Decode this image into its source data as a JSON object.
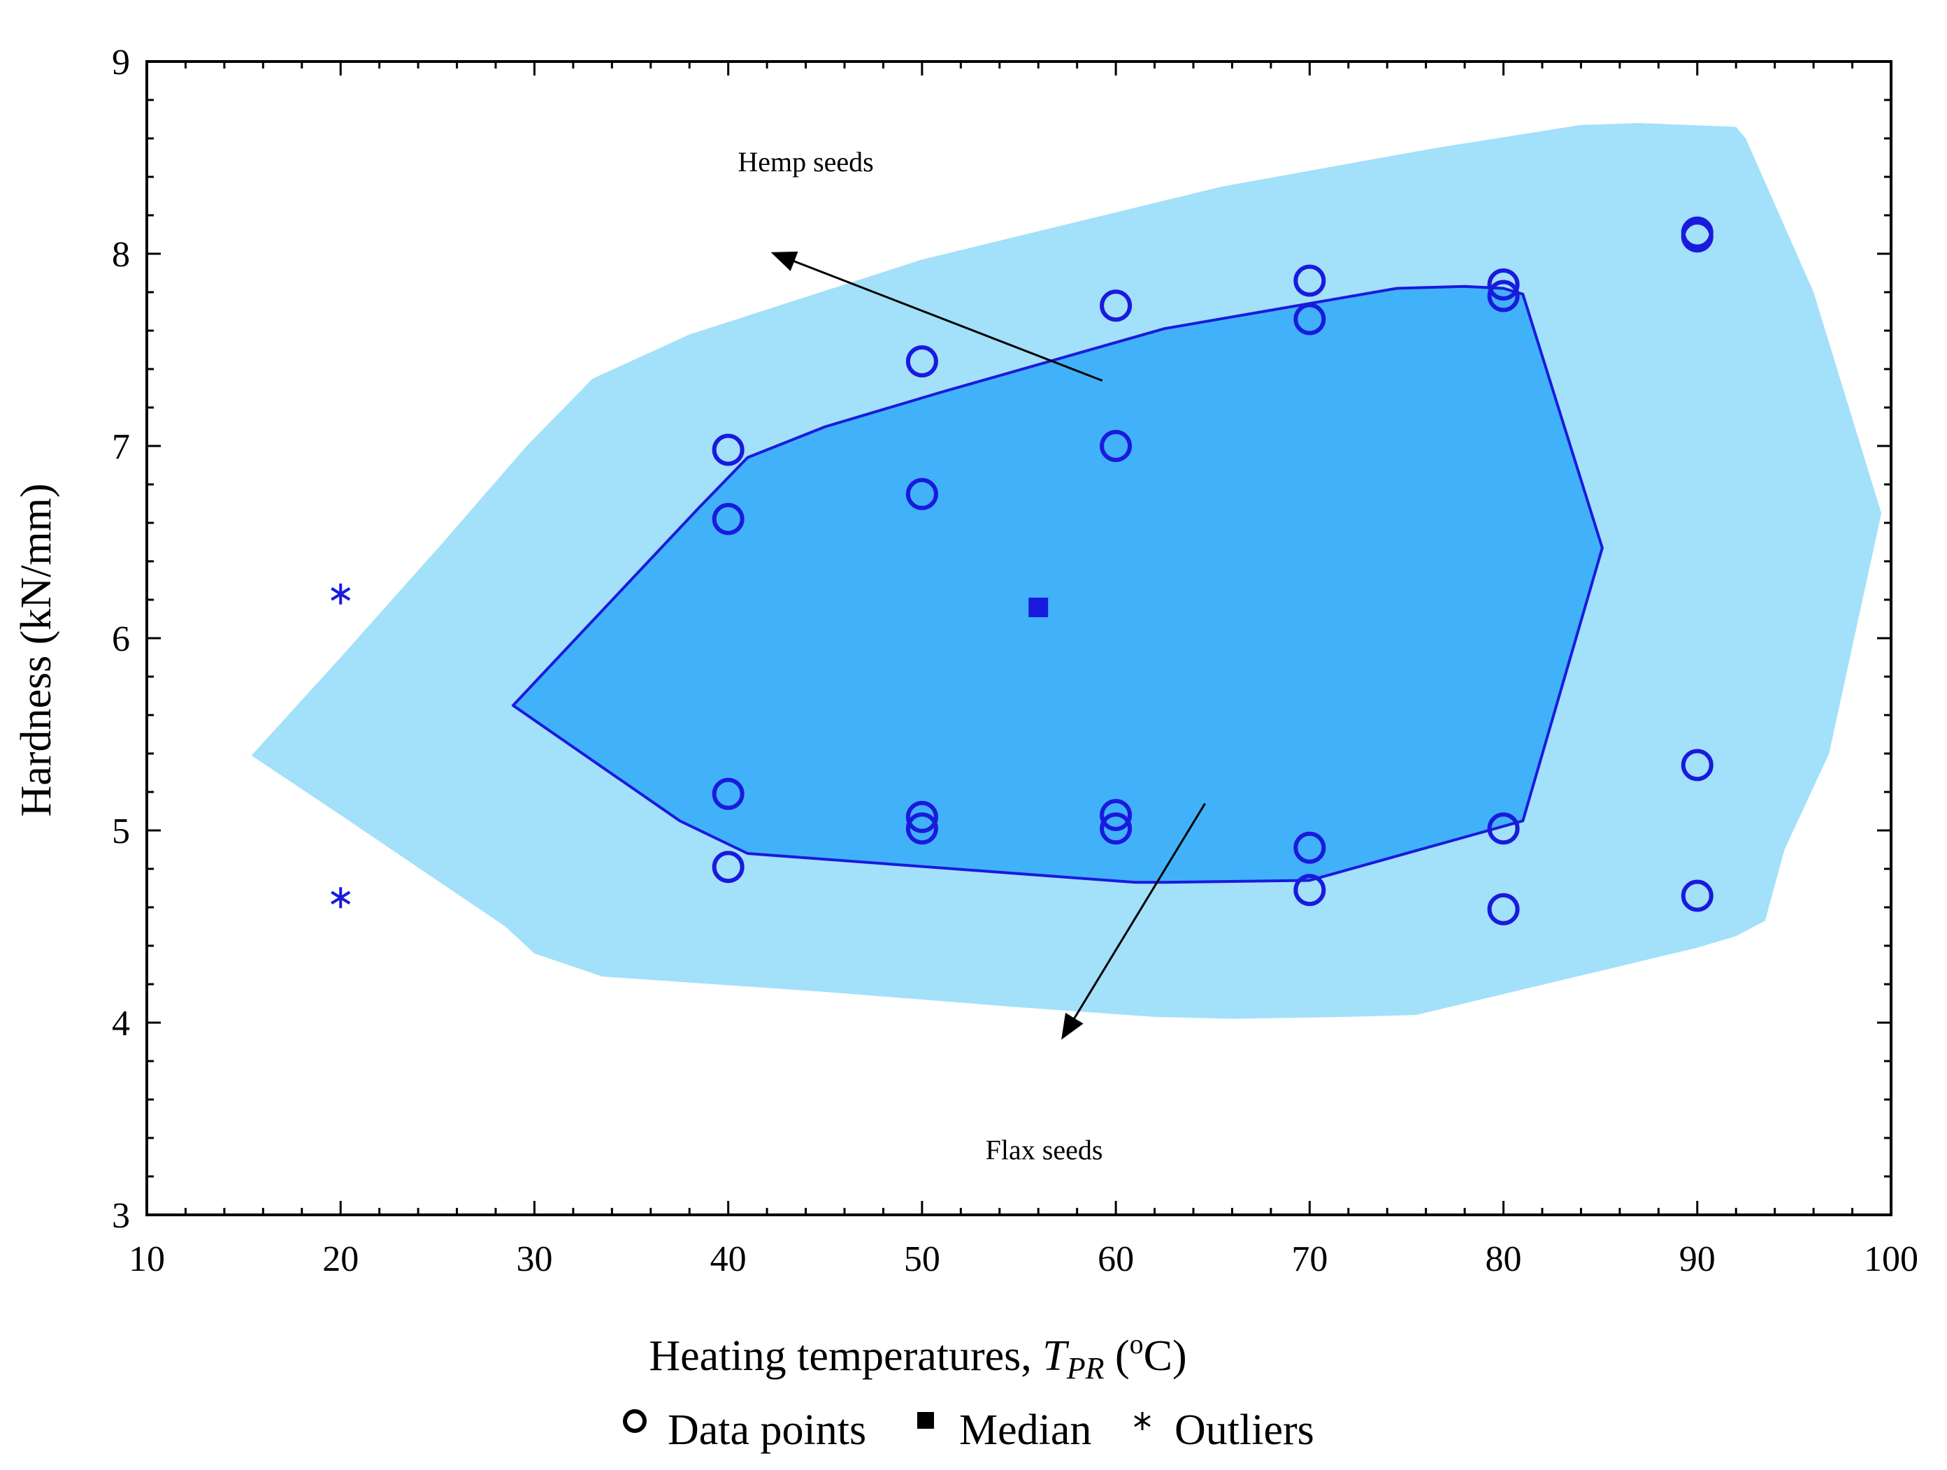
{
  "chart_data": {
    "type": "scatter",
    "title": "",
    "xlabel_prefix": "Heating temperatures, ",
    "xlabel_symbol": "T",
    "xlabel_subscript": "PR",
    "xlabel_unit_open": " (",
    "xlabel_unit_super": "o",
    "xlabel_unit_close": "C)",
    "ylabel": "Hardness (kN/mm)",
    "xlim": [
      10,
      100
    ],
    "ylim": [
      3,
      9
    ],
    "x_ticks": [
      10,
      20,
      30,
      40,
      50,
      60,
      70,
      80,
      90,
      100
    ],
    "y_ticks": [
      3,
      4,
      5,
      6,
      7,
      8,
      9
    ],
    "grid": false,
    "series": [
      {
        "name": "Data points",
        "marker": "circle",
        "points": [
          {
            "x": 40,
            "y": 6.98
          },
          {
            "x": 40,
            "y": 6.62
          },
          {
            "x": 40,
            "y": 5.19
          },
          {
            "x": 40,
            "y": 4.81
          },
          {
            "x": 50,
            "y": 7.44
          },
          {
            "x": 50,
            "y": 6.75
          },
          {
            "x": 50,
            "y": 5.07
          },
          {
            "x": 50,
            "y": 5.01
          },
          {
            "x": 60,
            "y": 7.73
          },
          {
            "x": 60,
            "y": 7.0
          },
          {
            "x": 60,
            "y": 5.08
          },
          {
            "x": 60,
            "y": 5.01
          },
          {
            "x": 70,
            "y": 7.86
          },
          {
            "x": 70,
            "y": 7.66
          },
          {
            "x": 70,
            "y": 4.91
          },
          {
            "x": 70,
            "y": 4.69
          },
          {
            "x": 80,
            "y": 7.84
          },
          {
            "x": 80,
            "y": 7.78
          },
          {
            "x": 80,
            "y": 5.01
          },
          {
            "x": 80,
            "y": 4.59
          },
          {
            "x": 90,
            "y": 8.11
          },
          {
            "x": 90,
            "y": 8.09
          },
          {
            "x": 90,
            "y": 5.34
          },
          {
            "x": 90,
            "y": 4.66
          }
        ]
      },
      {
        "name": "Median",
        "marker": "square",
        "points": [
          {
            "x": 56,
            "y": 6.16
          }
        ]
      },
      {
        "name": "Outliers",
        "marker": "asterisk",
        "points": [
          {
            "x": 20,
            "y": 6.23
          },
          {
            "x": 20,
            "y": 4.65
          }
        ]
      }
    ],
    "regions": [
      {
        "name": "Outer envelope",
        "color": "#A3E0FA",
        "polygon": [
          [
            15.4,
            5.39
          ],
          [
            20,
            5.9
          ],
          [
            25.3,
            6.5
          ],
          [
            29.6,
            7.0
          ],
          [
            33,
            7.35
          ],
          [
            38,
            7.58
          ],
          [
            50,
            7.97
          ],
          [
            65.5,
            8.35
          ],
          [
            76.5,
            8.55
          ],
          [
            84,
            8.67
          ],
          [
            87,
            8.68
          ],
          [
            92,
            8.66
          ],
          [
            92.5,
            8.6
          ],
          [
            96,
            7.8
          ],
          [
            99.5,
            6.65
          ],
          [
            96.8,
            5.4
          ],
          [
            94.5,
            4.9
          ],
          [
            93.5,
            4.53
          ],
          [
            92,
            4.45
          ],
          [
            90,
            4.39
          ],
          [
            75.5,
            4.04
          ],
          [
            72,
            4.03
          ],
          [
            66,
            4.02
          ],
          [
            62,
            4.03
          ],
          [
            55,
            4.08
          ],
          [
            45,
            4.16
          ],
          [
            33.5,
            4.24
          ],
          [
            30,
            4.36
          ],
          [
            28.5,
            4.5
          ],
          [
            20,
            5.08
          ]
        ]
      },
      {
        "name": "Inner hull",
        "color": "#41B2F9",
        "stroke": "#1A1ADD",
        "polygon": [
          [
            28.9,
            5.65
          ],
          [
            37.5,
            5.05
          ],
          [
            41,
            4.88
          ],
          [
            61,
            4.73
          ],
          [
            62.5,
            4.73
          ],
          [
            70,
            4.74
          ],
          [
            81,
            5.05
          ],
          [
            85.1,
            6.47
          ],
          [
            81,
            7.79
          ],
          [
            80,
            7.82
          ],
          [
            78,
            7.83
          ],
          [
            74.5,
            7.82
          ],
          [
            62.5,
            7.61
          ],
          [
            51,
            7.28
          ],
          [
            45,
            7.1
          ],
          [
            41,
            6.94
          ],
          [
            38.5,
            6.68
          ]
        ]
      }
    ],
    "annotations": [
      {
        "text": "Hemp seeds",
        "x": 44,
        "y": 8.43,
        "arrow_from": [
          59.3,
          7.34
        ],
        "arrow_to": [
          42.4,
          8.0
        ]
      },
      {
        "text": "Flax seeds",
        "x": 56.3,
        "y": 3.29,
        "arrow_from": [
          64.6,
          5.14
        ],
        "arrow_to": [
          57.3,
          3.93
        ]
      }
    ],
    "legend": [
      {
        "marker": "circle",
        "label": "Data points"
      },
      {
        "marker": "square",
        "label": "Median"
      },
      {
        "marker": "asterisk",
        "label": "Outliers"
      }
    ],
    "legend_position": "bottom-center",
    "colors": {
      "marker": "#1A1ADD",
      "outer_fill": "#A3E0FA",
      "inner_fill": "#41B2F9",
      "axis": "#000000"
    }
  }
}
